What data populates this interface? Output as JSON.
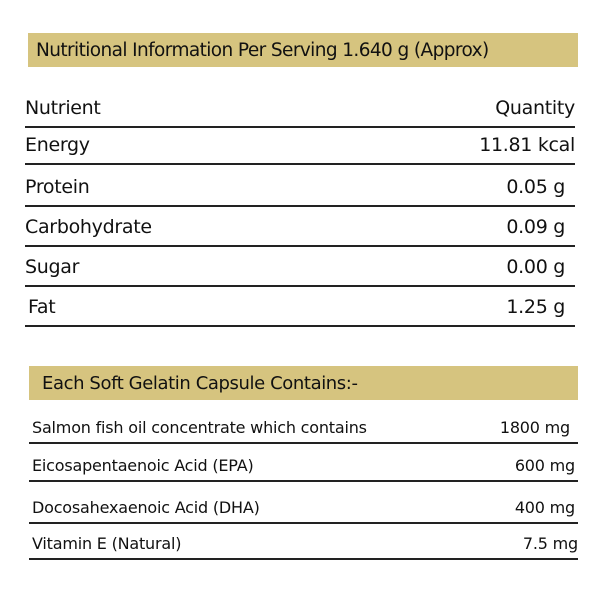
{
  "nutrition": {
    "title": "Nutritional Information Per Serving 1.640 g (Approx)",
    "header": {
      "nutrient": "Nutrient",
      "quantity": "Quantity"
    },
    "rows": [
      {
        "nutrient": "Energy",
        "quantity": "11.81 kcal"
      },
      {
        "nutrient": "Protein",
        "quantity": "0.05 g"
      },
      {
        "nutrient": "Carbohydrate",
        "quantity": "0.09 g"
      },
      {
        "nutrient": "Sugar",
        "quantity": "0.00 g"
      },
      {
        "nutrient": "Fat",
        "quantity": "1.25 g"
      }
    ]
  },
  "capsule": {
    "title": "Each Soft Gelatin Capsule Contains:-",
    "rows": [
      {
        "name": "Salmon fish oil concentrate which contains",
        "amount": "1800 mg"
      },
      {
        "name": "Eicosapentaenoic Acid (EPA)",
        "amount": "600 mg"
      },
      {
        "name": "Docosahexaenoic Acid (DHA)",
        "amount": "400 mg"
      },
      {
        "name": "Vitamin E (Natural)",
        "amount": "7.5 mg"
      }
    ]
  },
  "colors": {
    "band": "#d6c47f",
    "text": "#111111",
    "rule": "#222222"
  }
}
